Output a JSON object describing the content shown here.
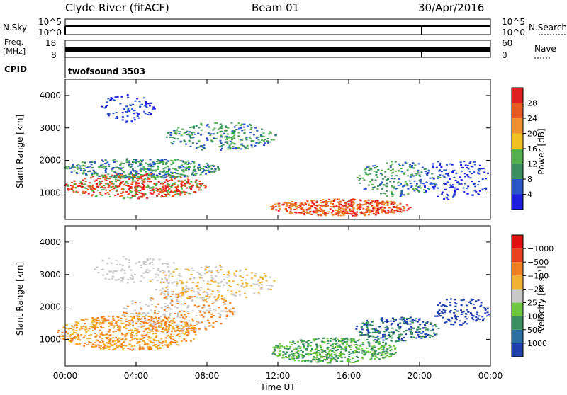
{
  "header": {
    "station": "Clyde River (fitACF)",
    "beam": "Beam 01",
    "date": "30/Apr/2016"
  },
  "panels": {
    "nsky": {
      "label": "N.Sky",
      "tick_hi": "10^5",
      "tick_lo": "10^0",
      "right_label": "N.Search",
      "right_tick_hi": "10^5",
      "right_tick_lo": "10^0"
    },
    "freq": {
      "label_top": "Freq.",
      "label_unit": "[MHz]",
      "tick_hi": "18",
      "tick_lo": "8",
      "right_label": "Nave",
      "right_tick_hi": "60",
      "right_tick_lo": "0"
    },
    "cpid": {
      "label": "CPID",
      "value": "twofsound 3503"
    }
  },
  "chart_data": [
    {
      "type": "heatmap",
      "name": "power",
      "ylabel": "Slant Range [km]",
      "y_ticks": [
        1000,
        2000,
        3000,
        4000
      ],
      "ylim": [
        180,
        4500
      ],
      "x_ticks": [
        "00:00",
        "04:00",
        "08:00",
        "12:00",
        "16:00",
        "20:00",
        "00:00"
      ],
      "colorbar": {
        "label": "Power [dB]",
        "ticks": [
          "4",
          "8",
          "12",
          "16",
          "20",
          "24",
          "28"
        ],
        "colors": [
          "#1f1fe0",
          "#2a55c8",
          "#3b8f60",
          "#55b050",
          "#f0c020",
          "#f09030",
          "#e85a20",
          "#e02020"
        ]
      }
    },
    {
      "type": "heatmap",
      "name": "velocity",
      "ylabel": "Slant Range [km]",
      "y_ticks": [
        1000,
        2000,
        3000,
        4000
      ],
      "ylim": [
        180,
        4500
      ],
      "x_ticks": [
        "00:00",
        "04:00",
        "08:00",
        "12:00",
        "16:00",
        "20:00",
        "00:00"
      ],
      "xlabel": "Time UT",
      "colorbar": {
        "label": "Velocity [m s⁻¹]",
        "ticks": [
          "1000",
          "500",
          "100",
          "25",
          "−25",
          "−100",
          "−500",
          "−1000"
        ],
        "colors": [
          "#2040b0",
          "#2c70a0",
          "#3a9060",
          "#70c840",
          "#c8c8c8",
          "#f0b030",
          "#f08020",
          "#e84020",
          "#e01010"
        ]
      }
    }
  ],
  "scatter_colors": {
    "power": [
      "#e02020",
      "#e85a20",
      "#f09030",
      "#3b8f60",
      "#55b050",
      "#2a55c8",
      "#1f1fe0"
    ],
    "velocity": [
      "#f08020",
      "#f0b030",
      "#c8c8c8",
      "#70c840",
      "#3a9060",
      "#2040b0"
    ]
  }
}
